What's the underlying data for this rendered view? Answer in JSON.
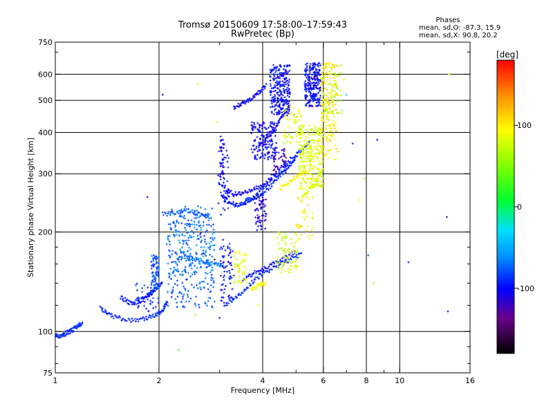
{
  "chart_data": {
    "type": "scatter",
    "title": "Tromsø 20150609 17:58:00–17:59:43",
    "subtitle": "RwPretec (Bp)",
    "stats": {
      "heading": "Phases",
      "line1": "mean, sd,O: -87.3, 15.9",
      "line2": "mean, sd,X:  90.8, 20.2"
    },
    "xlabel": "Frequency [MHz]",
    "ylabel": "Stationary phase Virtual Height [km]",
    "x_scale": "log",
    "y_scale": "log",
    "xlim": [
      1,
      16
    ],
    "ylim": [
      75,
      750
    ],
    "x_ticks": [
      1,
      2,
      4,
      6,
      8,
      10,
      16
    ],
    "x_minor_ticks": [
      3,
      5,
      7,
      9
    ],
    "y_ticks": [
      75,
      100,
      200,
      300,
      400,
      500,
      600,
      750
    ],
    "x_grid": [
      2,
      4,
      6,
      8,
      10
    ],
    "y_grid": [
      100,
      200,
      300,
      400,
      500,
      600
    ],
    "colorbar": {
      "label": "[deg]",
      "range": [
        -180,
        180
      ],
      "ticks": [
        100,
        0,
        -100
      ]
    },
    "traces": [
      {
        "points": [
          [
            1.0,
            97
          ],
          [
            1.04,
            97
          ],
          [
            1.08,
            99
          ],
          [
            1.12,
            101
          ],
          [
            1.16,
            104
          ],
          [
            1.2,
            106
          ]
        ],
        "phase": -90
      },
      {
        "points": [
          [
            1.35,
            118
          ],
          [
            1.45,
            112
          ],
          [
            1.6,
            108
          ],
          [
            1.8,
            109
          ],
          [
            1.95,
            112
          ],
          [
            2.05,
            116
          ],
          [
            2.12,
            124
          ]
        ],
        "phase": -92
      },
      {
        "points": [
          [
            1.55,
            127
          ],
          [
            1.65,
            122
          ],
          [
            1.75,
            123
          ],
          [
            1.85,
            128
          ],
          [
            1.95,
            134
          ],
          [
            2.05,
            142
          ]
        ],
        "phase": -95
      },
      {
        "points": [
          [
            2.05,
            226
          ],
          [
            2.25,
            230
          ],
          [
            2.45,
            232
          ],
          [
            2.65,
            225
          ],
          [
            2.8,
            222
          ]
        ],
        "phase": -75
      },
      {
        "points": [
          [
            2.3,
            170
          ],
          [
            2.6,
            165
          ],
          [
            2.9,
            160
          ],
          [
            3.1,
            158
          ]
        ],
        "phase": -70
      },
      {
        "points": [
          [
            3.05,
            258
          ],
          [
            3.2,
            245
          ],
          [
            3.4,
            240
          ],
          [
            3.6,
            246
          ],
          [
            3.8,
            256
          ],
          [
            4.1,
            278
          ],
          [
            4.5,
            302
          ],
          [
            5.0,
            330
          ]
        ],
        "phase": -95
      },
      {
        "points": [
          [
            3.1,
            270
          ],
          [
            3.3,
            260
          ],
          [
            3.55,
            262
          ],
          [
            3.85,
            272
          ],
          [
            4.2,
            290
          ],
          [
            4.6,
            318
          ],
          [
            5.1,
            352
          ]
        ],
        "phase": -105
      },
      {
        "points": [
          [
            3.55,
            248
          ],
          [
            3.85,
            255
          ],
          [
            4.2,
            275
          ],
          [
            4.6,
            305
          ],
          [
            5.0,
            340
          ],
          [
            5.5,
            380
          ]
        ],
        "phase": -90
      },
      {
        "points": [
          [
            3.3,
            475
          ],
          [
            3.5,
            490
          ],
          [
            3.7,
            505
          ],
          [
            3.9,
            530
          ],
          [
            4.1,
            555
          ]
        ],
        "phase": -100
      },
      {
        "points": [
          [
            4.0,
            370
          ],
          [
            4.2,
            395
          ],
          [
            4.4,
            420
          ],
          [
            4.6,
            455
          ],
          [
            4.8,
            480
          ]
        ],
        "phase": -110
      },
      {
        "points": [
          [
            3.1,
            120
          ],
          [
            3.4,
            128
          ],
          [
            3.7,
            140
          ],
          [
            4.0,
            150
          ],
          [
            4.4,
            158
          ],
          [
            4.8,
            165
          ],
          [
            5.2,
            172
          ]
        ],
        "phase": -90
      },
      {
        "points": [
          [
            3.5,
            142
          ],
          [
            3.8,
            152
          ],
          [
            4.2,
            158
          ],
          [
            4.6,
            166
          ],
          [
            5.0,
            175
          ]
        ],
        "phase": -100
      },
      {
        "points": [
          [
            5.2,
            255
          ],
          [
            5.5,
            270
          ],
          [
            5.8,
            290
          ],
          [
            6.0,
            310
          ]
        ],
        "phase": 80
      },
      {
        "points": [
          [
            4.5,
            270
          ],
          [
            4.8,
            285
          ],
          [
            5.1,
            298
          ],
          [
            5.4,
            305
          ]
        ],
        "phase": 95
      },
      {
        "points": [
          [
            3.7,
            134
          ],
          [
            3.9,
            138
          ],
          [
            4.1,
            140
          ]
        ],
        "phase": 95
      }
    ],
    "clusters": [
      {
        "x": [
          1.9,
          2.0
        ],
        "y": [
          135,
          170
        ],
        "n": 70,
        "phase": -80
      },
      {
        "x": [
          1.7,
          2.0
        ],
        "y": [
          115,
          140
        ],
        "n": 40,
        "phase": -90
      },
      {
        "x": [
          2.1,
          2.9
        ],
        "y": [
          118,
          240
        ],
        "n": 280,
        "phase": -75
      },
      {
        "x": [
          2.2,
          2.9
        ],
        "y": [
          150,
          215
        ],
        "n": 80,
        "phase": -60
      },
      {
        "x": [
          2.95,
          3.2
        ],
        "y": [
          225,
          360
        ],
        "n": 50,
        "phase": -100
      },
      {
        "x": [
          3.0,
          3.1
        ],
        "y": [
          290,
          390
        ],
        "n": 30,
        "phase": -112
      },
      {
        "x": [
          3.0,
          3.3
        ],
        "y": [
          120,
          190
        ],
        "n": 70,
        "phase": -100
      },
      {
        "x": [
          3.3,
          3.6
        ],
        "y": [
          140,
          175
        ],
        "n": 50,
        "phase": 85
      },
      {
        "x": [
          3.8,
          4.1
        ],
        "y": [
          200,
          260
        ],
        "n": 60,
        "phase": -112
      },
      {
        "x": [
          3.7,
          4.4
        ],
        "y": [
          330,
          430
        ],
        "n": 160,
        "phase": -102
      },
      {
        "x": [
          4.2,
          4.8
        ],
        "y": [
          450,
          640
        ],
        "n": 260,
        "phase": -100
      },
      {
        "x": [
          4.4,
          5.1
        ],
        "y": [
          150,
          200
        ],
        "n": 80,
        "phase": 75
      },
      {
        "x": [
          4.6,
          5.2
        ],
        "y": [
          370,
          480
        ],
        "n": 60,
        "phase": 82
      },
      {
        "x": [
          5.3,
          5.9
        ],
        "y": [
          480,
          650
        ],
        "n": 240,
        "phase": -100
      },
      {
        "x": [
          5.1,
          6.0
        ],
        "y": [
          270,
          420
        ],
        "n": 280,
        "phase": 82
      },
      {
        "x": [
          5.9,
          6.6
        ],
        "y": [
          330,
          650
        ],
        "n": 200,
        "phase": 100
      },
      {
        "x": [
          6.0,
          6.8
        ],
        "y": [
          450,
          640
        ],
        "n": 40,
        "phase": 60
      },
      {
        "x": [
          4.3,
          4.7
        ],
        "y": [
          300,
          360
        ],
        "n": 40,
        "phase": -120
      },
      {
        "x": [
          5.0,
          5.6
        ],
        "y": [
          190,
          260
        ],
        "n": 40,
        "phase": 100
      }
    ],
    "scattered": [
      [
        2.28,
        88,
        20
      ],
      [
        2.6,
        560,
        80
      ],
      [
        2.9,
        165,
        -160
      ],
      [
        2.95,
        430,
        100
      ],
      [
        3.9,
        120,
        100
      ],
      [
        6.4,
        500,
        100
      ],
      [
        7.6,
        250,
        80
      ],
      [
        7.9,
        290,
        70
      ],
      [
        8.4,
        140,
        60
      ],
      [
        8.6,
        380,
        -100
      ],
      [
        8.1,
        170,
        -80
      ],
      [
        10.6,
        162,
        -100
      ],
      [
        13.7,
        222,
        -150
      ],
      [
        13.8,
        115,
        -100
      ],
      [
        13.9,
        600,
        90
      ],
      [
        7.0,
        520,
        -30
      ],
      [
        6.9,
        580,
        90
      ],
      [
        2.05,
        520,
        -100
      ],
      [
        1.85,
        255,
        -100
      ],
      [
        3.0,
        110,
        -100
      ],
      [
        2.55,
        112,
        60
      ],
      [
        7.3,
        370,
        -90
      ],
      [
        5.6,
        220,
        100
      ]
    ]
  }
}
